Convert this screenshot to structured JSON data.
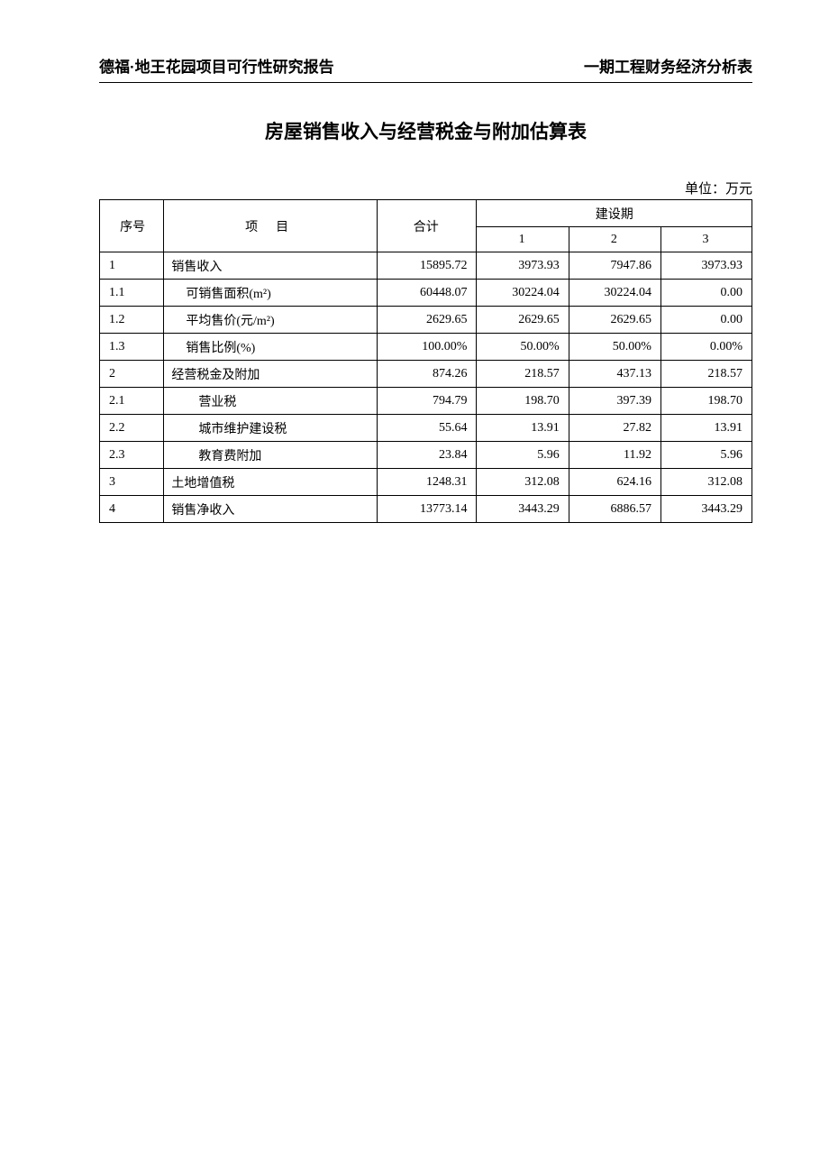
{
  "header": {
    "left": "德福·地王花园项目可行性研究报告",
    "right": "一期工程财务经济分析表"
  },
  "title": "房屋销售收入与经营税金与附加估算表",
  "unit_label": "单位：万元",
  "table": {
    "columns": {
      "seq": "序号",
      "item": "项目",
      "total": "合计",
      "period": "建设期",
      "p1": "1",
      "p2": "2",
      "p3": "3"
    },
    "rows": [
      {
        "seq": "1",
        "item": "销售收入",
        "indent": 0,
        "total": "15895.72",
        "p1": "3973.93",
        "p2": "7947.86",
        "p3": "3973.93"
      },
      {
        "seq": "1.1",
        "item": "可销售面积(m²)",
        "indent": 1,
        "total": "60448.07",
        "p1": "30224.04",
        "p2": "30224.04",
        "p3": "0.00"
      },
      {
        "seq": "1.2",
        "item": "平均售价(元/m²)",
        "indent": 1,
        "total": "2629.65",
        "p1": "2629.65",
        "p2": "2629.65",
        "p3": "0.00"
      },
      {
        "seq": "1.3",
        "item": "销售比例(%)",
        "indent": 1,
        "total": "100.00%",
        "p1": "50.00%",
        "p2": "50.00%",
        "p3": "0.00%"
      },
      {
        "seq": "2",
        "item": "经营税金及附加",
        "indent": 0,
        "total": "874.26",
        "p1": "218.57",
        "p2": "437.13",
        "p3": "218.57"
      },
      {
        "seq": "2.1",
        "item": "营业税",
        "indent": 2,
        "total": "794.79",
        "p1": "198.70",
        "p2": "397.39",
        "p3": "198.70"
      },
      {
        "seq": "2.2",
        "item": "城市维护建设税",
        "indent": 2,
        "total": "55.64",
        "p1": "13.91",
        "p2": "27.82",
        "p3": "13.91"
      },
      {
        "seq": "2.3",
        "item": "教育费附加",
        "indent": 2,
        "total": "23.84",
        "p1": "5.96",
        "p2": "11.92",
        "p3": "5.96"
      },
      {
        "seq": "3",
        "item": "土地增值税",
        "indent": 0,
        "total": "1248.31",
        "p1": "312.08",
        "p2": "624.16",
        "p3": "312.08"
      },
      {
        "seq": "4",
        "item": "销售净收入",
        "indent": 0,
        "total": "13773.14",
        "p1": "3443.29",
        "p2": "6886.57",
        "p3": "3443.29"
      }
    ]
  }
}
